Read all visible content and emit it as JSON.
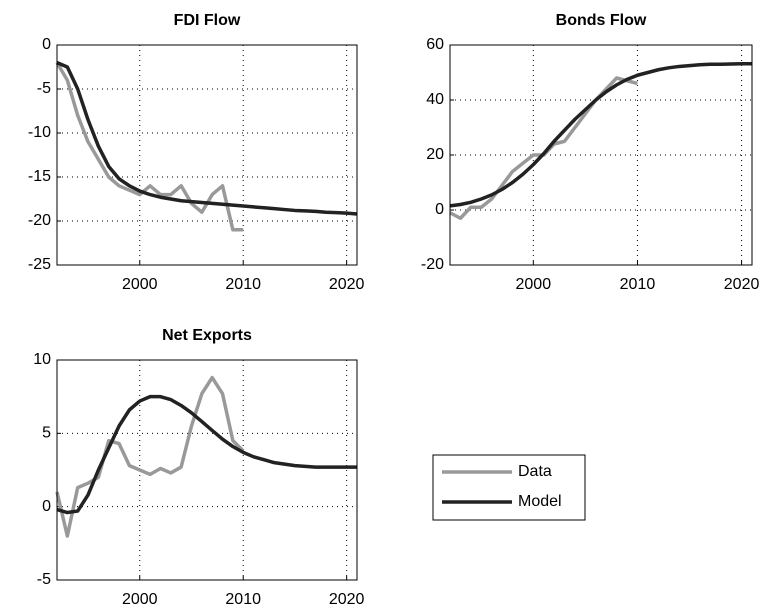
{
  "chart_data": [
    {
      "type": "line",
      "title": "FDI Flow",
      "x": [
        1992,
        1993,
        1994,
        1995,
        1996,
        1997,
        1998,
        1999,
        2000,
        2001,
        2002,
        2003,
        2004,
        2005,
        2006,
        2007,
        2008,
        2009,
        2010,
        2011,
        2012,
        2013,
        2014,
        2015,
        2016,
        2017,
        2018,
        2019,
        2020,
        2021
      ],
      "series": [
        {
          "color": "#999999",
          "values": [
            -2,
            -4,
            -8,
            -11,
            -13,
            -15,
            -16,
            -16.5,
            -17,
            -16,
            -17,
            -17,
            -16,
            -18,
            -19,
            -17,
            -16,
            -21,
            -21,
            null,
            null,
            null,
            null,
            null,
            null,
            null,
            null,
            null,
            null,
            null
          ]
        },
        {
          "color": "#222222",
          "values": [
            -2,
            -2.5,
            -5,
            -8.5,
            -11.5,
            -13.8,
            -15.2,
            -16,
            -16.6,
            -17,
            -17.3,
            -17.5,
            -17.7,
            -17.8,
            -17.9,
            -18,
            -18.1,
            -18.2,
            -18.3,
            -18.4,
            -18.5,
            -18.6,
            -18.7,
            -18.8,
            -18.85,
            -18.9,
            -19,
            -19.05,
            -19.1,
            -19.2
          ]
        }
      ],
      "xlim": [
        1992,
        2021
      ],
      "xticks": [
        2000,
        2010,
        2020
      ],
      "ylim": [
        -25,
        0
      ],
      "yticks": [
        -25,
        -20,
        -15,
        -10,
        -5,
        0
      ],
      "grid": true
    },
    {
      "type": "line",
      "title": "Bonds Flow",
      "x": [
        1992,
        1993,
        1994,
        1995,
        1996,
        1997,
        1998,
        1999,
        2000,
        2001,
        2002,
        2003,
        2004,
        2005,
        2006,
        2007,
        2008,
        2009,
        2010,
        2011,
        2012,
        2013,
        2014,
        2015,
        2016,
        2017,
        2018,
        2019,
        2020,
        2021
      ],
      "series": [
        {
          "color": "#999999",
          "values": [
            -1,
            -3,
            1,
            1,
            4,
            9,
            14,
            17,
            20,
            20,
            24,
            25,
            30,
            35,
            40,
            44,
            48,
            47,
            46,
            null,
            null,
            null,
            null,
            null,
            null,
            null,
            null,
            null,
            null,
            null
          ]
        },
        {
          "color": "#222222",
          "values": [
            1.5,
            2,
            2.8,
            4,
            5.5,
            7.5,
            10,
            13,
            16.5,
            20.5,
            25,
            29,
            33,
            36.5,
            40,
            43,
            45.5,
            47.5,
            49,
            50,
            51,
            51.7,
            52.2,
            52.5,
            52.8,
            53,
            53,
            53.1,
            53.2,
            53.2
          ]
        }
      ],
      "xlim": [
        1992,
        2021
      ],
      "xticks": [
        2000,
        2010,
        2020
      ],
      "ylim": [
        -20,
        60
      ],
      "yticks": [
        -20,
        0,
        20,
        40,
        60
      ],
      "grid": true
    },
    {
      "type": "line",
      "title": "Net Exports",
      "x": [
        1992,
        1993,
        1994,
        1995,
        1996,
        1997,
        1998,
        1999,
        2000,
        2001,
        2002,
        2003,
        2004,
        2005,
        2006,
        2007,
        2008,
        2009,
        2010,
        2011,
        2012,
        2013,
        2014,
        2015,
        2016,
        2017,
        2018,
        2019,
        2020,
        2021
      ],
      "series": [
        {
          "name": "Data",
          "color": "#999999",
          "values": [
            1,
            -2,
            1.3,
            1.6,
            2,
            4.5,
            4.3,
            2.8,
            2.5,
            2.2,
            2.6,
            2.3,
            2.7,
            5.5,
            7.7,
            8.8,
            7.7,
            4.5,
            3.8,
            null,
            null,
            null,
            null,
            null,
            null,
            null,
            null,
            null,
            null,
            null
          ]
        },
        {
          "name": "Model",
          "color": "#222222",
          "values": [
            -0.2,
            -0.4,
            -0.3,
            0.8,
            2.5,
            4,
            5.5,
            6.6,
            7.2,
            7.5,
            7.5,
            7.3,
            6.9,
            6.4,
            5.8,
            5.2,
            4.6,
            4.1,
            3.7,
            3.4,
            3.2,
            3,
            2.9,
            2.8,
            2.75,
            2.7,
            2.7,
            2.7,
            2.7,
            2.7
          ]
        }
      ],
      "xlim": [
        1992,
        2021
      ],
      "xticks": [
        2000,
        2010,
        2020
      ],
      "ylim": [
        -5,
        10
      ],
      "yticks": [
        -5,
        0,
        5,
        10
      ],
      "grid": true
    }
  ]
}
